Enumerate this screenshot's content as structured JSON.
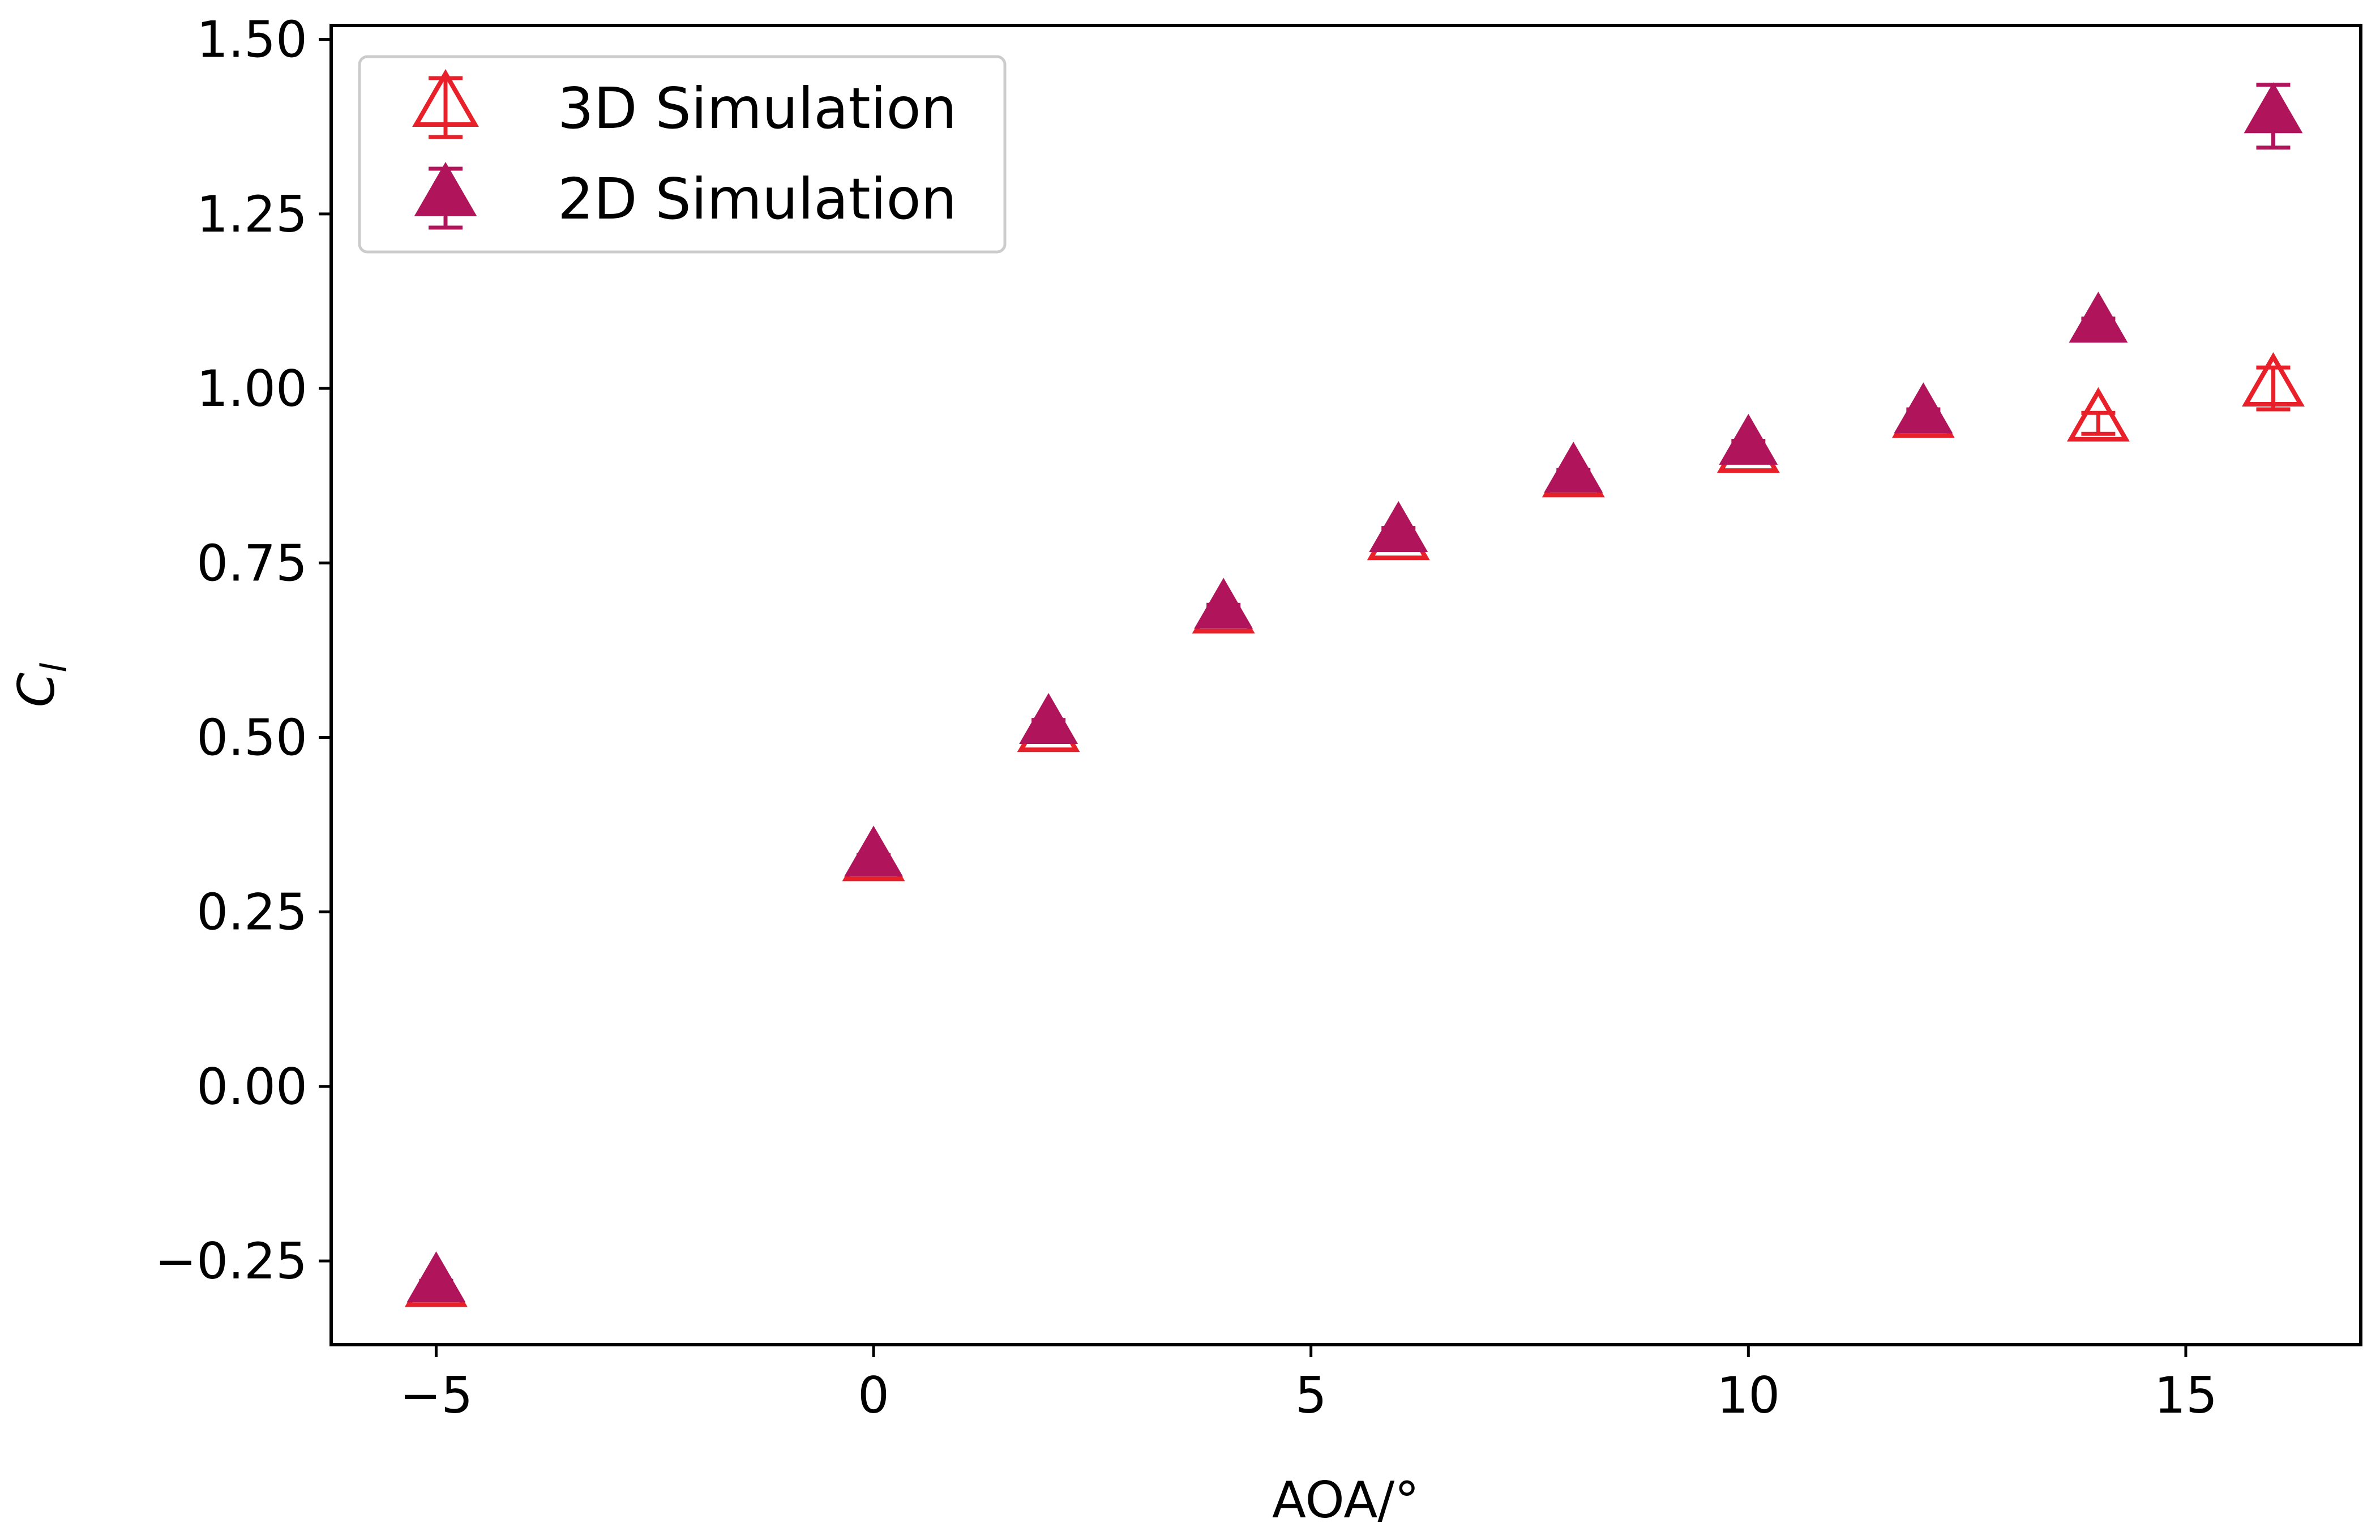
{
  "chart_data": {
    "type": "scatter",
    "xlabel": "AOA/°",
    "ylabel": "C_l",
    "xlim": [
      -6.2,
      17.0
    ],
    "ylim": [
      -0.37,
      1.52
    ],
    "xticks": [
      -5,
      0,
      5,
      10,
      15
    ],
    "xtick_labels": [
      "−5",
      "0",
      "5",
      "10",
      "15"
    ],
    "yticks": [
      -0.25,
      0.0,
      0.25,
      0.5,
      0.75,
      1.0,
      1.25,
      1.5
    ],
    "ytick_labels": [
      "−0.25",
      "0.00",
      "0.25",
      "0.50",
      "0.75",
      "1.00",
      "1.25",
      "1.50"
    ],
    "legend_position": "top-left",
    "grid": false,
    "series": [
      {
        "name": "3D Simulation",
        "marker": "hollow-triangle",
        "color": "#e8202a",
        "x": [
          -5,
          0,
          2,
          4,
          6,
          8,
          10,
          12,
          14,
          16
        ],
        "y": [
          -0.29,
          0.32,
          0.505,
          0.675,
          0.78,
          0.87,
          0.905,
          0.955,
          0.95,
          1.0
        ],
        "err": [
          0.005,
          0.005,
          0.01,
          0.01,
          0.01,
          0.008,
          0.01,
          0.01,
          0.015,
          0.03
        ]
      },
      {
        "name": "2D Simulation",
        "marker": "filled-triangle",
        "color": "#b0145a",
        "x": [
          -5,
          0,
          2,
          4,
          6,
          8,
          10,
          12,
          14,
          16
        ],
        "y": [
          -0.285,
          0.325,
          0.515,
          0.68,
          0.79,
          0.875,
          0.915,
          0.96,
          1.09,
          1.39
        ],
        "err": [
          0.005,
          0.005,
          0.01,
          0.01,
          0.01,
          0.008,
          0.01,
          0.01,
          0.01,
          0.045
        ]
      }
    ]
  }
}
